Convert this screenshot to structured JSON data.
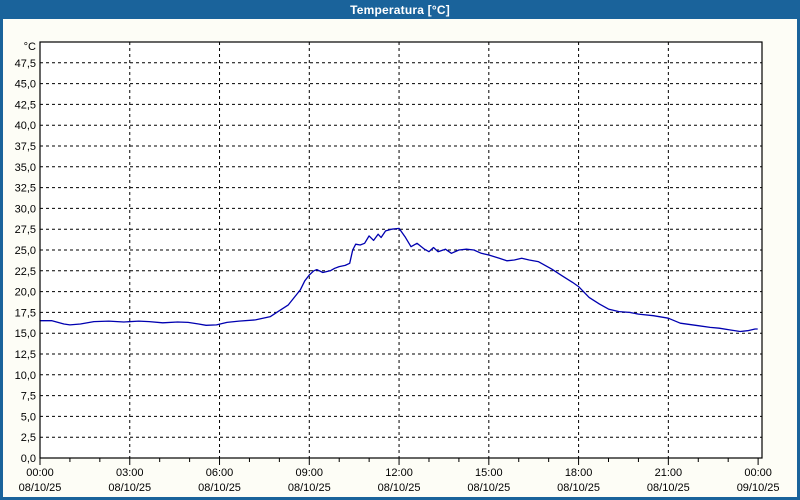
{
  "window": {
    "title": "Temperatura [°C]"
  },
  "colors": {
    "titlebar_bg": "#1a639b",
    "window_border": "#1a639b",
    "panel_bg": "#fdfdf6",
    "plot_bg": "#ffffff",
    "grid": "#000000",
    "axis": "#000000",
    "text": "#000000",
    "title_text": "#ffffff",
    "line": "#0000b0"
  },
  "chart_data": {
    "type": "line",
    "title": "Temperatura [°C]",
    "ylabel": "°C",
    "y_unit_label": "°C",
    "ylim": [
      0,
      50
    ],
    "ytick_step": 2.5,
    "ytick_label_max": 47.5,
    "decimal_separator": ",",
    "grid": true,
    "legend_position": "none",
    "x_span_hours": 24.13,
    "x_major_step_hours": 3,
    "x_minor_step_hours": 1,
    "xtick_labels": [
      {
        "time": "00:00",
        "date": "08/10/25"
      },
      {
        "time": "03:00",
        "date": "08/10/25"
      },
      {
        "time": "06:00",
        "date": "08/10/25"
      },
      {
        "time": "09:00",
        "date": "08/10/25"
      },
      {
        "time": "12:00",
        "date": "08/10/25"
      },
      {
        "time": "15:00",
        "date": "08/10/25"
      },
      {
        "time": "18:00",
        "date": "08/10/25"
      },
      {
        "time": "21:00",
        "date": "08/10/25"
      },
      {
        "time": "00:00",
        "date": "09/10/25"
      }
    ],
    "series": [
      {
        "name": "Temperatura",
        "color": "#0000b0",
        "points_hour_value": [
          [
            0.0,
            16.5
          ],
          [
            0.4,
            16.5
          ],
          [
            0.8,
            16.1
          ],
          [
            1.0,
            16.0
          ],
          [
            1.35,
            16.1
          ],
          [
            1.8,
            16.4
          ],
          [
            2.3,
            16.45
          ],
          [
            2.8,
            16.35
          ],
          [
            3.3,
            16.45
          ],
          [
            3.65,
            16.4
          ],
          [
            4.1,
            16.25
          ],
          [
            4.6,
            16.35
          ],
          [
            4.95,
            16.3
          ],
          [
            5.3,
            16.1
          ],
          [
            5.55,
            15.95
          ],
          [
            5.9,
            16.0
          ],
          [
            6.25,
            16.3
          ],
          [
            6.65,
            16.45
          ],
          [
            7.2,
            16.6
          ],
          [
            7.7,
            17.0
          ],
          [
            8.0,
            17.7
          ],
          [
            8.3,
            18.4
          ],
          [
            8.5,
            19.3
          ],
          [
            8.7,
            20.2
          ],
          [
            8.85,
            21.3
          ],
          [
            9.0,
            22.0
          ],
          [
            9.15,
            22.5
          ],
          [
            9.25,
            22.65
          ],
          [
            9.45,
            22.3
          ],
          [
            9.7,
            22.5
          ],
          [
            9.85,
            22.8
          ],
          [
            10.0,
            23.0
          ],
          [
            10.2,
            23.15
          ],
          [
            10.35,
            23.4
          ],
          [
            10.45,
            25.0
          ],
          [
            10.55,
            25.7
          ],
          [
            10.7,
            25.6
          ],
          [
            10.85,
            25.8
          ],
          [
            11.0,
            26.7
          ],
          [
            11.15,
            26.15
          ],
          [
            11.3,
            26.9
          ],
          [
            11.4,
            26.5
          ],
          [
            11.55,
            27.3
          ],
          [
            11.75,
            27.5
          ],
          [
            12.0,
            27.6
          ],
          [
            12.2,
            26.6
          ],
          [
            12.4,
            25.4
          ],
          [
            12.6,
            25.8
          ],
          [
            12.85,
            25.1
          ],
          [
            13.0,
            24.8
          ],
          [
            13.15,
            25.3
          ],
          [
            13.3,
            24.8
          ],
          [
            13.55,
            25.1
          ],
          [
            13.75,
            24.6
          ],
          [
            14.0,
            25.0
          ],
          [
            14.25,
            25.1
          ],
          [
            14.5,
            25.0
          ],
          [
            14.75,
            24.6
          ],
          [
            15.0,
            24.4
          ],
          [
            15.35,
            24.0
          ],
          [
            15.6,
            23.7
          ],
          [
            15.85,
            23.8
          ],
          [
            16.1,
            24.0
          ],
          [
            16.35,
            23.8
          ],
          [
            16.65,
            23.6
          ],
          [
            16.95,
            23.0
          ],
          [
            17.1,
            22.7
          ],
          [
            17.45,
            21.9
          ],
          [
            17.8,
            21.1
          ],
          [
            18.0,
            20.6
          ],
          [
            18.35,
            19.3
          ],
          [
            18.7,
            18.5
          ],
          [
            19.0,
            17.9
          ],
          [
            19.35,
            17.6
          ],
          [
            19.7,
            17.5
          ],
          [
            20.0,
            17.3
          ],
          [
            20.5,
            17.1
          ],
          [
            21.0,
            16.8
          ],
          [
            21.4,
            16.2
          ],
          [
            22.0,
            15.9
          ],
          [
            22.4,
            15.7
          ],
          [
            22.7,
            15.6
          ],
          [
            23.05,
            15.4
          ],
          [
            23.4,
            15.2
          ],
          [
            23.65,
            15.3
          ],
          [
            23.9,
            15.5
          ],
          [
            23.97,
            15.5
          ]
        ]
      }
    ]
  }
}
